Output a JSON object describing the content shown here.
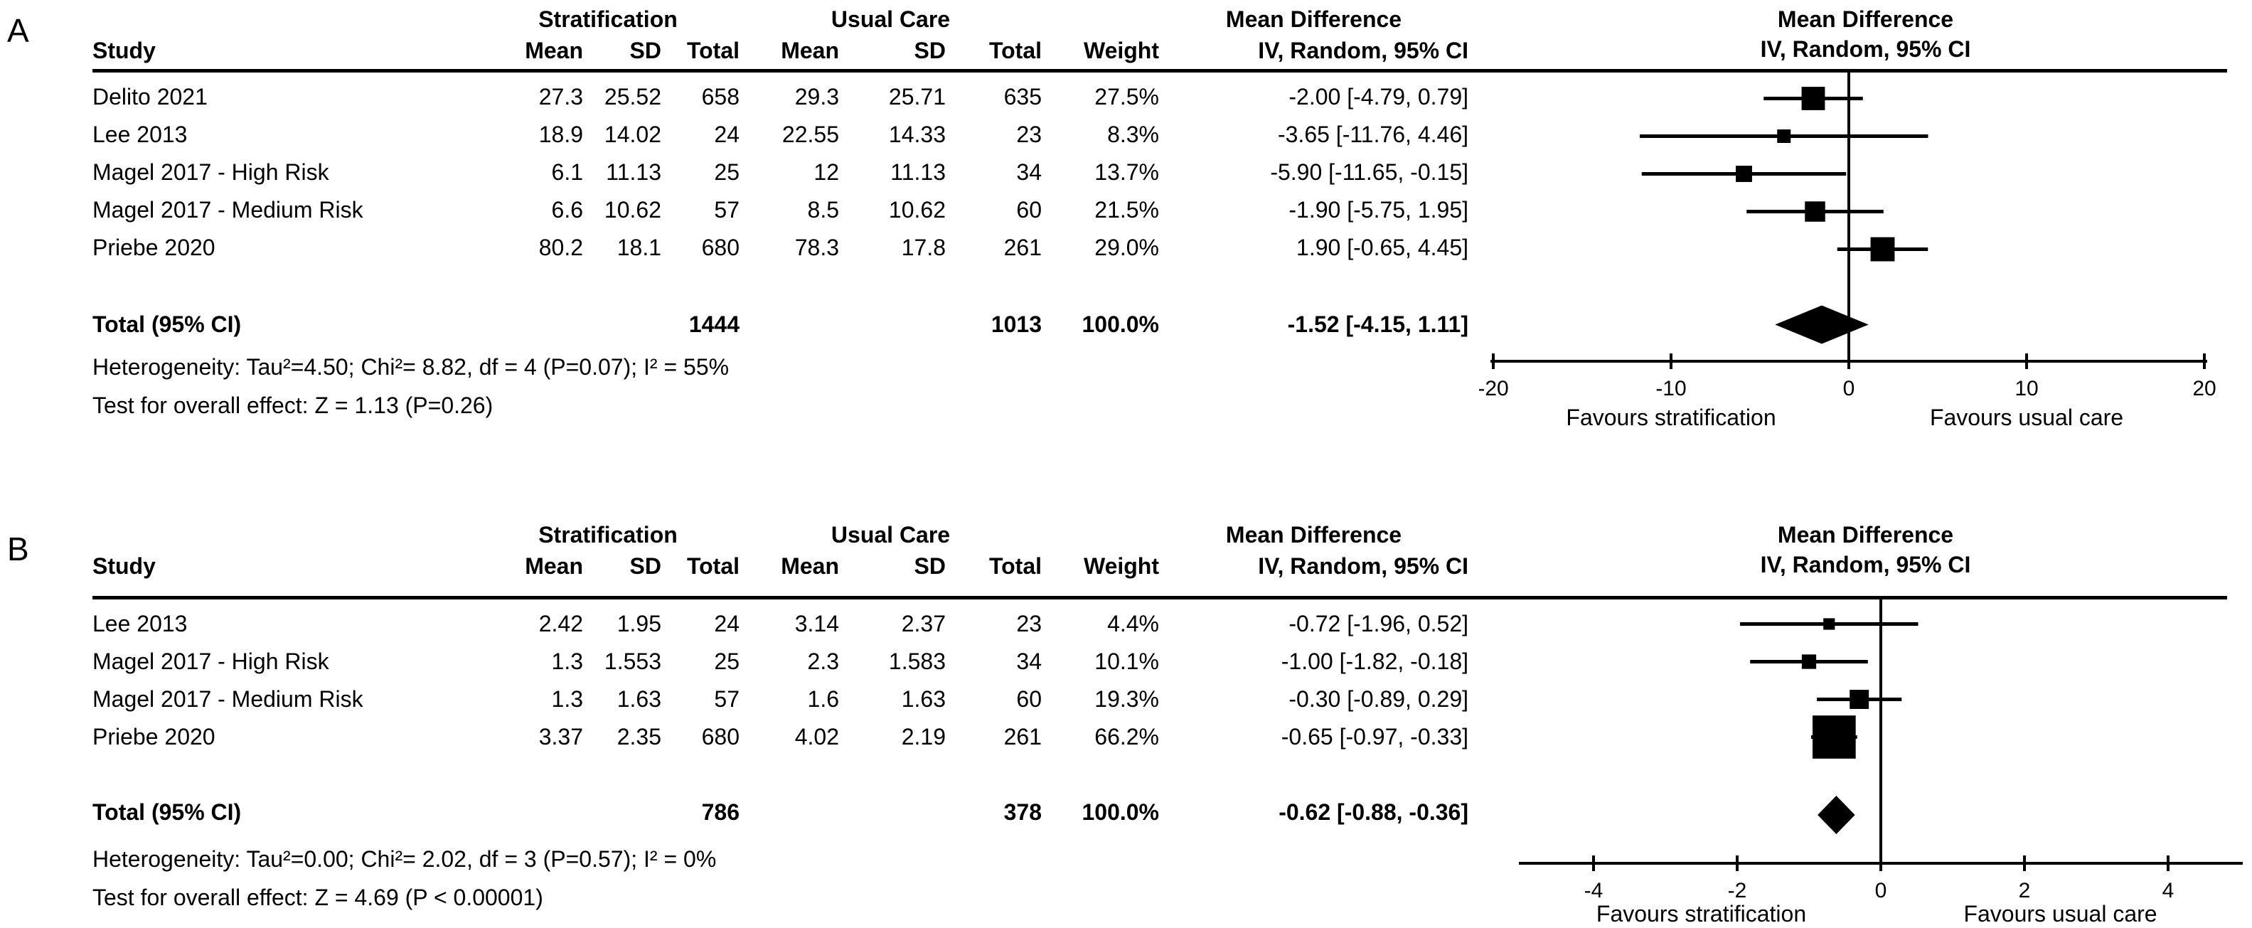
{
  "panels": [
    {
      "label": "A",
      "group_headers": {
        "treatment": "Stratification",
        "control": "Usual Care",
        "effect": "Mean Difference"
      },
      "column_headers": {
        "study": "Study",
        "mean1": "Mean",
        "sd1": "SD",
        "total1": "Total",
        "mean2": "Mean",
        "sd2": "SD",
        "total2": "Total",
        "weight": "Weight",
        "effect": "IV, Random, 95% CI"
      },
      "rows": [
        {
          "study": "Delito 2021",
          "mean1": "27.3",
          "sd1": "25.52",
          "total1": "658",
          "mean2": "29.3",
          "sd2": "25.71",
          "total2": "635",
          "weight": "27.5%",
          "md": "-2.00 [-4.79, 0.79]"
        },
        {
          "study": "Lee 2013",
          "mean1": "18.9",
          "sd1": "14.02",
          "total1": "24",
          "mean2": "22.55",
          "sd2": "14.33",
          "total2": "23",
          "weight": "8.3%",
          "md": "-3.65 [-11.76, 4.46]"
        },
        {
          "study": "Magel 2017 - High Risk",
          "mean1": "6.1",
          "sd1": "11.13",
          "total1": "25",
          "mean2": "12",
          "sd2": "11.13",
          "total2": "34",
          "weight": "13.7%",
          "md": "-5.90 [-11.65, -0.15]"
        },
        {
          "study": "Magel 2017 - Medium Risk",
          "mean1": "6.6",
          "sd1": "10.62",
          "total1": "57",
          "mean2": "8.5",
          "sd2": "10.62",
          "total2": "60",
          "weight": "21.5%",
          "md": "-1.90 [-5.75, 1.95]"
        },
        {
          "study": "Priebe 2020",
          "mean1": "80.2",
          "sd1": "18.1",
          "total1": "680",
          "mean2": "78.3",
          "sd2": "17.8",
          "total2": "261",
          "weight": "29.0%",
          "md": "1.90 [-0.65, 4.45]"
        }
      ],
      "total_row": {
        "label": "Total (95% CI)",
        "total1": "1444",
        "total2": "1013",
        "weight": "100.0%",
        "md": "-1.52 [-4.15, 1.11]"
      },
      "heterogeneity": "Heterogeneity: Tau²=4.50; Chi²= 8.82, df = 4 (P=0.07); I² = 55%",
      "overall_effect": "Test for overall effect: Z = 1.13 (P=0.26)"
    },
    {
      "label": "B",
      "group_headers": {
        "treatment": "Stratification",
        "control": "Usual Care",
        "effect": "Mean Difference"
      },
      "column_headers": {
        "study": "Study",
        "mean1": "Mean",
        "sd1": "SD",
        "total1": "Total",
        "mean2": "Mean",
        "sd2": "SD",
        "total2": "Total",
        "weight": "Weight",
        "effect": "IV, Random, 95% CI"
      },
      "rows": [
        {
          "study": "Lee 2013",
          "mean1": "2.42",
          "sd1": "1.95",
          "total1": "24",
          "mean2": "3.14",
          "sd2": "2.37",
          "total2": "23",
          "weight": "4.4%",
          "md": "-0.72 [-1.96, 0.52]"
        },
        {
          "study": "Magel 2017 - High Risk",
          "mean1": "1.3",
          "sd1": "1.553",
          "total1": "25",
          "mean2": "2.3",
          "sd2": "1.583",
          "total2": "34",
          "weight": "10.1%",
          "md": "-1.00 [-1.82, -0.18]"
        },
        {
          "study": "Magel 2017 - Medium Risk",
          "mean1": "1.3",
          "sd1": "1.63",
          "total1": "57",
          "mean2": "1.6",
          "sd2": "1.63",
          "total2": "60",
          "weight": "19.3%",
          "md": "-0.30 [-0.89, 0.29]"
        },
        {
          "study": "Priebe 2020",
          "mean1": "3.37",
          "sd1": "2.35",
          "total1": "680",
          "mean2": "4.02",
          "sd2": "2.19",
          "total2": "261",
          "weight": "66.2%",
          "md": "-0.65 [-0.97, -0.33]"
        }
      ],
      "total_row": {
        "label": "Total (95% CI)",
        "total1": "786",
        "total2": "378",
        "weight": "100.0%",
        "md": "-0.62 [-0.88, -0.36]"
      },
      "heterogeneity": "Heterogeneity: Tau²=0.00; Chi²= 2.02, df = 3 (P=0.57); I² = 0%",
      "overall_effect": "Test for overall effect: Z = 4.69 (P < 0.00001)"
    }
  ],
  "chart_data": [
    {
      "type": "forest",
      "panel": "A",
      "title": "Mean Difference",
      "subtitle": "IV, Random, 95% CI",
      "effects": [
        {
          "study": "Delito 2021",
          "md": -2.0,
          "ci_low": -4.79,
          "ci_high": 0.79,
          "weight_pct": 27.5
        },
        {
          "study": "Lee 2013",
          "md": -3.65,
          "ci_low": -11.76,
          "ci_high": 4.46,
          "weight_pct": 8.3
        },
        {
          "study": "Magel 2017 - High Risk",
          "md": -5.9,
          "ci_low": -11.65,
          "ci_high": -0.15,
          "weight_pct": 13.7
        },
        {
          "study": "Magel 2017 - Medium Risk",
          "md": -1.9,
          "ci_low": -5.75,
          "ci_high": 1.95,
          "weight_pct": 21.5
        },
        {
          "study": "Priebe 2020",
          "md": 1.9,
          "ci_low": -0.65,
          "ci_high": 4.45,
          "weight_pct": 29.0
        }
      ],
      "total": {
        "md": -1.52,
        "ci_low": -4.15,
        "ci_high": 1.11
      },
      "xlim": [
        -20,
        20
      ],
      "ticks": [
        -20,
        -10,
        0,
        10,
        20
      ],
      "xlabel_left": "Favours stratification",
      "xlabel_right": "Favours usual care"
    },
    {
      "type": "forest",
      "panel": "B",
      "title": "Mean Difference",
      "subtitle": "IV, Random, 95% CI",
      "effects": [
        {
          "study": "Lee 2013",
          "md": -0.72,
          "ci_low": -1.96,
          "ci_high": 0.52,
          "weight_pct": 4.4
        },
        {
          "study": "Magel 2017 - High Risk",
          "md": -1.0,
          "ci_low": -1.82,
          "ci_high": -0.18,
          "weight_pct": 10.1
        },
        {
          "study": "Magel 2017 - Medium Risk",
          "md": -0.3,
          "ci_low": -0.89,
          "ci_high": 0.29,
          "weight_pct": 19.3
        },
        {
          "study": "Priebe 2020",
          "md": -0.65,
          "ci_low": -0.97,
          "ci_high": -0.33,
          "weight_pct": 66.2
        }
      ],
      "total": {
        "md": -0.62,
        "ci_low": -0.88,
        "ci_high": -0.36
      },
      "xlim": [
        -4,
        4
      ],
      "ticks": [
        -4,
        -2,
        0,
        2,
        4
      ],
      "xlabel_left": "Favours stratification",
      "xlabel_right": "Favours usual care"
    }
  ]
}
